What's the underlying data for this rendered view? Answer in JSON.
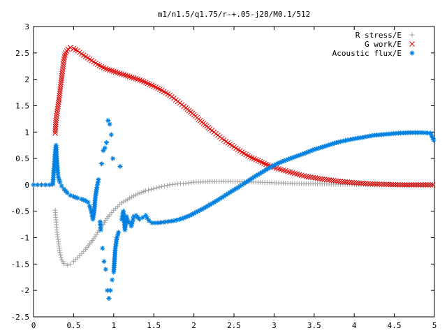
{
  "chart_data": {
    "type": "scatter",
    "title": "m1/n1.5/q1.75/r-+.05-j28/M0.1/512",
    "xlabel": "",
    "ylabel": "",
    "xlim": [
      0,
      5
    ],
    "ylim": [
      -2.5,
      3
    ],
    "xticks": [
      0,
      0.5,
      1,
      1.5,
      2,
      2.5,
      3,
      3.5,
      4,
      4.5,
      5
    ],
    "xtick_labels": [
      "0",
      "0.5",
      "1",
      "1.5",
      "2",
      "2.5",
      "3",
      "3.5",
      "4",
      "4.5",
      "5"
    ],
    "yticks": [
      -2.5,
      -2,
      -1.5,
      -1,
      -0.5,
      0,
      0.5,
      1,
      1.5,
      2,
      2.5,
      3
    ],
    "ytick_labels": [
      "-2.5",
      "-2",
      "-1.5",
      "-1",
      "-0.5",
      "0",
      "0.5",
      "1",
      "1.5",
      "2",
      "2.5",
      "3"
    ],
    "grid": false,
    "legend_position": "top-right",
    "series": [
      {
        "name": "R stress/E",
        "marker": "plus",
        "color": "#a0a0a0",
        "points": [
          [
            0.27,
            -0.48
          ],
          [
            0.28,
            -0.66
          ],
          [
            0.29,
            -0.85
          ],
          [
            0.31,
            -1.08
          ],
          [
            0.33,
            -1.28
          ],
          [
            0.35,
            -1.42
          ],
          [
            0.38,
            -1.49
          ],
          [
            0.42,
            -1.52
          ],
          [
            0.46,
            -1.5
          ],
          [
            0.5,
            -1.45
          ],
          [
            0.55,
            -1.38
          ],
          [
            0.6,
            -1.3
          ],
          [
            0.65,
            -1.22
          ],
          [
            0.7,
            -1.12
          ],
          [
            0.75,
            -1.02
          ],
          [
            0.8,
            -0.9
          ],
          [
            0.85,
            -0.78
          ],
          [
            0.9,
            -0.67
          ],
          [
            0.95,
            -0.57
          ],
          [
            1.0,
            -0.48
          ],
          [
            1.05,
            -0.41
          ],
          [
            1.1,
            -0.34
          ],
          [
            1.2,
            -0.25
          ],
          [
            1.3,
            -0.17
          ],
          [
            1.4,
            -0.11
          ],
          [
            1.5,
            -0.07
          ],
          [
            1.6,
            -0.03
          ],
          [
            1.7,
            0.0
          ],
          [
            1.8,
            0.02
          ],
          [
            1.9,
            0.03
          ],
          [
            2.0,
            0.05
          ],
          [
            2.2,
            0.06
          ],
          [
            2.4,
            0.07
          ],
          [
            2.6,
            0.06
          ],
          [
            2.8,
            0.05
          ],
          [
            3.0,
            0.04
          ],
          [
            3.2,
            0.03
          ],
          [
            3.4,
            0.02
          ],
          [
            3.6,
            0.02
          ],
          [
            3.8,
            0.01
          ],
          [
            4.0,
            0.01
          ],
          [
            4.2,
            0.0
          ],
          [
            4.4,
            0.0
          ],
          [
            4.6,
            0.0
          ],
          [
            4.8,
            0.0
          ],
          [
            4.98,
            0.0
          ]
        ]
      },
      {
        "name": "G work/E",
        "marker": "cross",
        "color": "#e00000",
        "points": [
          [
            0.27,
            0.98
          ],
          [
            0.28,
            1.22
          ],
          [
            0.3,
            1.44
          ],
          [
            0.32,
            1.65
          ],
          [
            0.34,
            1.9
          ],
          [
            0.36,
            2.15
          ],
          [
            0.38,
            2.38
          ],
          [
            0.4,
            2.5
          ],
          [
            0.43,
            2.57
          ],
          [
            0.46,
            2.6
          ],
          [
            0.5,
            2.58
          ],
          [
            0.55,
            2.54
          ],
          [
            0.6,
            2.48
          ],
          [
            0.7,
            2.38
          ],
          [
            0.8,
            2.28
          ],
          [
            0.9,
            2.2
          ],
          [
            1.0,
            2.15
          ],
          [
            1.1,
            2.1
          ],
          [
            1.2,
            2.05
          ],
          [
            1.3,
            2.0
          ],
          [
            1.4,
            1.94
          ],
          [
            1.5,
            1.87
          ],
          [
            1.6,
            1.79
          ],
          [
            1.7,
            1.7
          ],
          [
            1.8,
            1.58
          ],
          [
            1.9,
            1.46
          ],
          [
            2.0,
            1.33
          ],
          [
            2.1,
            1.19
          ],
          [
            2.2,
            1.06
          ],
          [
            2.3,
            0.94
          ],
          [
            2.4,
            0.82
          ],
          [
            2.5,
            0.72
          ],
          [
            2.6,
            0.62
          ],
          [
            2.7,
            0.53
          ],
          [
            2.8,
            0.46
          ],
          [
            2.9,
            0.39
          ],
          [
            3.0,
            0.33
          ],
          [
            3.2,
            0.24
          ],
          [
            3.4,
            0.16
          ],
          [
            3.6,
            0.11
          ],
          [
            3.8,
            0.07
          ],
          [
            4.0,
            0.04
          ],
          [
            4.2,
            0.02
          ],
          [
            4.4,
            0.01
          ],
          [
            4.6,
            0.0
          ],
          [
            4.8,
            0.0
          ],
          [
            4.98,
            0.0
          ]
        ]
      },
      {
        "name": "Acoustic flux/E",
        "marker": "star",
        "color": "#0080e0",
        "points": [
          [
            0.0,
            0.0
          ],
          [
            0.05,
            0.0
          ],
          [
            0.1,
            0.0
          ],
          [
            0.15,
            0.0
          ],
          [
            0.2,
            0.0
          ],
          [
            0.24,
            0.01
          ],
          [
            0.26,
            0.4
          ],
          [
            0.27,
            0.62
          ],
          [
            0.28,
            0.75
          ],
          [
            0.29,
            0.5
          ],
          [
            0.3,
            0.28
          ],
          [
            0.31,
            0.14
          ],
          [
            0.33,
            0.05
          ],
          [
            0.35,
            -0.02
          ],
          [
            0.38,
            -0.08
          ],
          [
            0.42,
            -0.15
          ],
          [
            0.46,
            -0.2
          ],
          [
            0.5,
            -0.22
          ],
          [
            0.55,
            -0.25
          ],
          [
            0.6,
            -0.27
          ],
          [
            0.65,
            -0.3
          ],
          [
            0.68,
            -0.33
          ],
          [
            0.7,
            -0.4
          ],
          [
            0.72,
            -0.5
          ],
          [
            0.74,
            -0.65
          ],
          [
            0.76,
            -0.45
          ],
          [
            0.77,
            -0.25
          ],
          [
            0.79,
            -0.05
          ],
          [
            0.81,
            0.1
          ],
          [
            0.83,
            -0.7
          ],
          [
            0.84,
            -0.85
          ],
          [
            0.85,
            0.4
          ],
          [
            0.86,
            -1.2
          ],
          [
            0.87,
            0.65
          ],
          [
            0.88,
            -1.45
          ],
          [
            0.89,
            0.7
          ],
          [
            0.9,
            -1.6
          ],
          [
            0.91,
            0.8
          ],
          [
            0.92,
            -2.0
          ],
          [
            0.93,
            1.22
          ],
          [
            0.94,
            -2.15
          ],
          [
            0.95,
            1.15
          ],
          [
            0.96,
            -2.0
          ],
          [
            0.97,
            0.95
          ],
          [
            0.98,
            -1.8
          ],
          [
            0.99,
            0.5
          ],
          [
            1.0,
            -1.65
          ],
          [
            1.02,
            -1.2
          ],
          [
            1.04,
            -1.0
          ],
          [
            1.06,
            -0.9
          ],
          [
            1.08,
            0.35
          ],
          [
            1.1,
            -0.65
          ],
          [
            1.12,
            -0.5
          ],
          [
            1.14,
            -0.85
          ],
          [
            1.16,
            -0.6
          ],
          [
            1.18,
            -0.7
          ],
          [
            1.2,
            -0.72
          ],
          [
            1.22,
            -0.78
          ],
          [
            1.25,
            -0.6
          ],
          [
            1.28,
            -0.58
          ],
          [
            1.32,
            -0.65
          ],
          [
            1.36,
            -0.62
          ],
          [
            1.4,
            -0.58
          ],
          [
            1.44,
            -0.68
          ],
          [
            1.48,
            -0.72
          ],
          [
            1.55,
            -0.72
          ],
          [
            1.65,
            -0.7
          ],
          [
            1.75,
            -0.68
          ],
          [
            1.85,
            -0.64
          ],
          [
            1.95,
            -0.58
          ],
          [
            2.05,
            -0.5
          ],
          [
            2.15,
            -0.42
          ],
          [
            2.25,
            -0.33
          ],
          [
            2.35,
            -0.24
          ],
          [
            2.45,
            -0.14
          ],
          [
            2.55,
            -0.05
          ],
          [
            2.65,
            0.05
          ],
          [
            2.75,
            0.15
          ],
          [
            2.85,
            0.24
          ],
          [
            2.95,
            0.33
          ],
          [
            3.05,
            0.41
          ],
          [
            3.2,
            0.5
          ],
          [
            3.35,
            0.58
          ],
          [
            3.5,
            0.67
          ],
          [
            3.65,
            0.74
          ],
          [
            3.8,
            0.81
          ],
          [
            3.95,
            0.86
          ],
          [
            4.1,
            0.9
          ],
          [
            4.25,
            0.94
          ],
          [
            4.4,
            0.96
          ],
          [
            4.55,
            0.98
          ],
          [
            4.7,
            0.99
          ],
          [
            4.85,
            0.99
          ],
          [
            4.95,
            0.98
          ],
          [
            4.99,
            0.85
          ]
        ]
      }
    ]
  }
}
